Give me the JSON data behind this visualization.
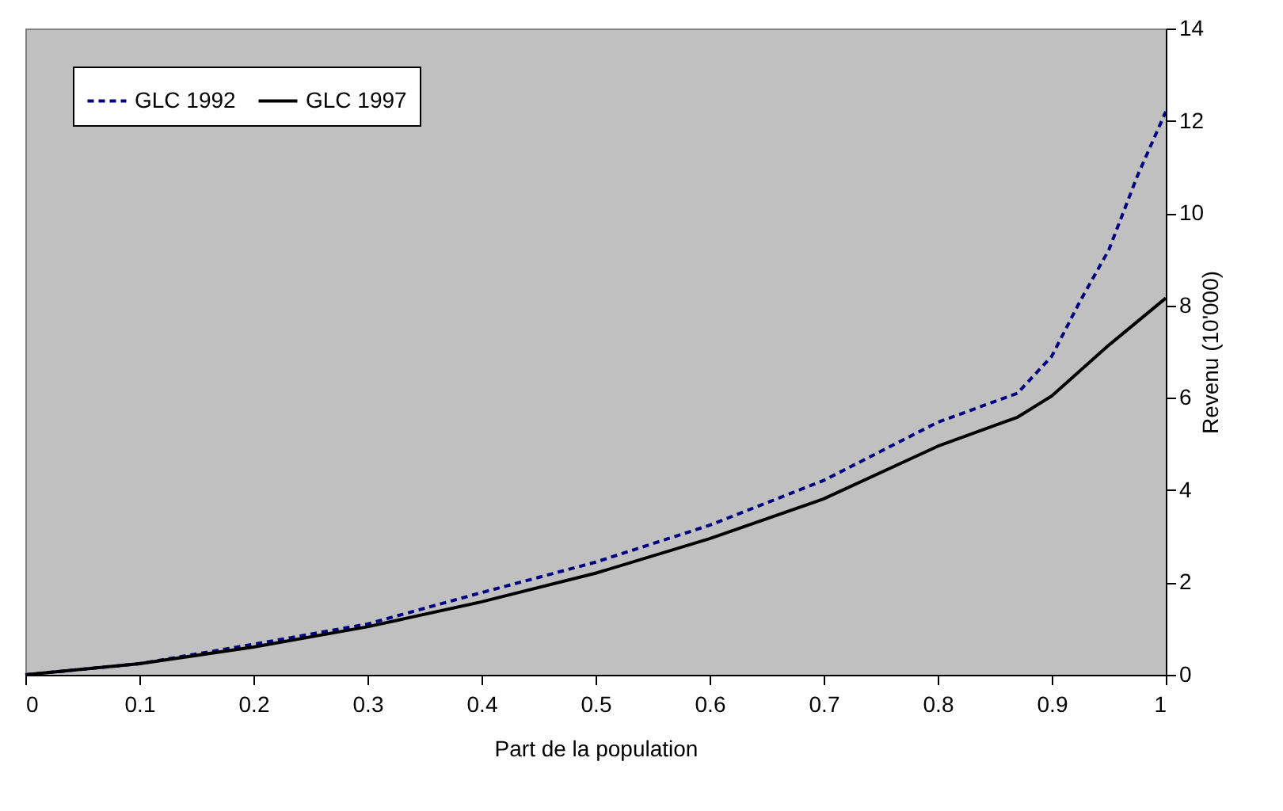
{
  "chart_data": {
    "type": "line",
    "xlabel": "Part de la population",
    "ylabel": "Revenu (10'000)",
    "xlim": [
      0,
      1
    ],
    "xticks": [
      0,
      0.1,
      0.2,
      0.3,
      0.4,
      0.5,
      0.6,
      0.7,
      0.8,
      0.9,
      1
    ],
    "ylim": [
      0,
      14
    ],
    "yticks": [
      0,
      2,
      4,
      6,
      8,
      10,
      12,
      14
    ],
    "grid": false,
    "legend": "top left",
    "series": [
      {
        "name": "GLC 1992",
        "color": "#000080",
        "line_style": "dashed",
        "x": [
          0,
          0.1,
          0.2,
          0.3,
          0.4,
          0.5,
          0.6,
          0.7,
          0.8,
          0.87,
          0.9,
          0.925,
          0.95,
          0.975,
          1
        ],
        "values": [
          0,
          0.24,
          0.66,
          1.1,
          1.78,
          2.44,
          3.24,
          4.21,
          5.47,
          6.1,
          6.9,
          8.1,
          9.2,
          10.8,
          12.2
        ]
      },
      {
        "name": "GLC 1997",
        "color": "#000000",
        "line_style": "solid",
        "x": [
          0,
          0.1,
          0.2,
          0.3,
          0.4,
          0.5,
          0.6,
          0.7,
          0.8,
          0.87,
          0.9,
          0.95,
          1
        ],
        "values": [
          0,
          0.24,
          0.6,
          1.04,
          1.58,
          2.2,
          2.95,
          3.81,
          4.95,
          5.58,
          6.04,
          7.14,
          8.16
        ]
      }
    ]
  }
}
